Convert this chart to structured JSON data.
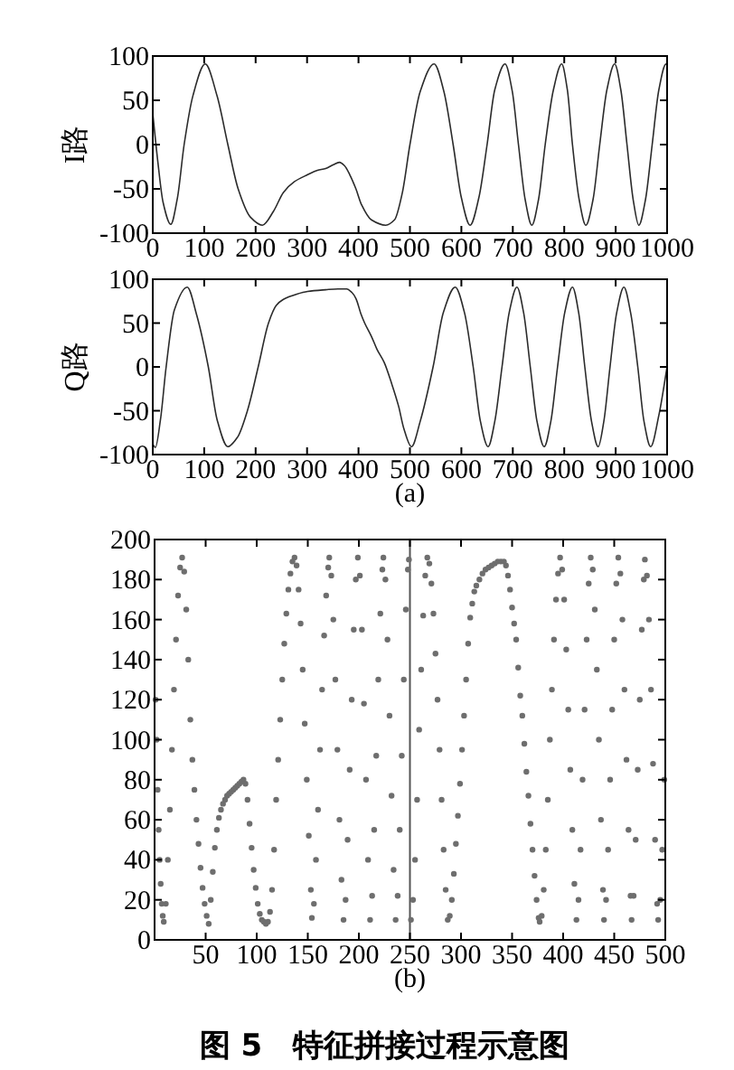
{
  "chart_data": [
    {
      "type": "line",
      "ylabel": "I路",
      "xlim": [
        0,
        1000
      ],
      "ylim": [
        -100,
        100
      ],
      "xticks": [
        0,
        100,
        200,
        300,
        400,
        500,
        600,
        700,
        800,
        900,
        1000
      ],
      "yticks": [
        -100,
        -50,
        0,
        50,
        100
      ],
      "series": [
        {
          "color": "#2b2b2b",
          "x": [
            0,
            10,
            20,
            35,
            48,
            61,
            78,
            102,
            125,
            146,
            166,
            190,
            213,
            235,
            254,
            275,
            301,
            320,
            336,
            350,
            363,
            373,
            383,
            395,
            406,
            425,
            453,
            470,
            485,
            500,
            520,
            547,
            566,
            584,
            600,
            617,
            634,
            650,
            665,
            685,
            699,
            711,
            724,
            737,
            750,
            763,
            779,
            795,
            806,
            816,
            829,
            842,
            856,
            869,
            883,
            898,
            910,
            922,
            934,
            945,
            958,
            971,
            984,
            998,
            1000
          ],
          "values": [
            35,
            -20,
            -65,
            -90,
            -60,
            0,
            55,
            91,
            55,
            0,
            -50,
            -82,
            -91,
            -75,
            -54,
            -42,
            -34,
            -29,
            -27,
            -23,
            -20,
            -24,
            -34,
            -50,
            -68,
            -85,
            -91,
            -85,
            -55,
            0,
            60,
            91,
            60,
            0,
            -60,
            -91,
            -60,
            0,
            62,
            91,
            60,
            0,
            -62,
            -91,
            -62,
            0,
            62,
            91,
            62,
            0,
            -62,
            -91,
            -62,
            0,
            62,
            91,
            62,
            0,
            -62,
            -91,
            -62,
            0,
            62,
            91,
            89
          ]
        }
      ]
    },
    {
      "type": "line",
      "ylabel": "Q路",
      "xlabel": "(a)",
      "xlim": [
        0,
        1000
      ],
      "ylim": [
        -100,
        100
      ],
      "xticks": [
        0,
        100,
        200,
        300,
        400,
        500,
        600,
        700,
        800,
        900,
        1000
      ],
      "yticks": [
        -100,
        -50,
        0,
        50,
        100
      ],
      "series": [
        {
          "color": "#2b2b2b",
          "x": [
            0,
            5,
            15,
            26,
            42,
            67,
            85,
            108,
            125,
            146,
            165,
            184,
            205,
            225,
            240,
            254,
            280,
            301,
            336,
            360,
            377,
            387,
            395,
            405,
            412,
            425,
            436,
            450,
            465,
            478,
            488,
            503,
            520,
            545,
            565,
            588,
            606,
            623,
            637,
            652,
            665,
            679,
            693,
            708,
            721,
            734,
            747,
            761,
            774,
            787,
            801,
            816,
            828,
            840,
            853,
            866,
            877,
            889,
            902,
            916,
            929,
            943,
            955,
            968,
            984,
            1000
          ],
          "values": [
            -88,
            -92,
            -60,
            0,
            65,
            91,
            60,
            0,
            -60,
            -91,
            -80,
            -50,
            0,
            50,
            70,
            77,
            83,
            86,
            88,
            89,
            89,
            85,
            78,
            60,
            50,
            35,
            20,
            5,
            -20,
            -45,
            -70,
            -91,
            -62,
            0,
            62,
            91,
            62,
            0,
            -62,
            -91,
            -62,
            0,
            62,
            91,
            62,
            0,
            -62,
            -91,
            -62,
            0,
            62,
            91,
            62,
            0,
            -62,
            -91,
            -62,
            0,
            62,
            91,
            62,
            0,
            -62,
            -91,
            -55,
            0
          ]
        }
      ]
    },
    {
      "type": "scatter",
      "xlabel": "(b)",
      "marker": "circle",
      "xlim": [
        0,
        500
      ],
      "ylim": [
        0,
        200
      ],
      "xticks": [
        50,
        100,
        150,
        200,
        250,
        300,
        350,
        400,
        450,
        500
      ],
      "yticks": [
        0,
        20,
        40,
        60,
        80,
        100,
        120,
        140,
        160,
        180,
        200
      ],
      "ref_lines": [
        {
          "axis": "x",
          "value": 250,
          "color": "#555555"
        }
      ],
      "annotations": [
        "图 5　特征拼接过程示意图"
      ],
      "series": [
        {
          "color": "#6e6e6e",
          "x": [
            1,
            2,
            3,
            4,
            5,
            6,
            7,
            8,
            9,
            11,
            13,
            15,
            17,
            19,
            21,
            23,
            25,
            27,
            29,
            31,
            33,
            35,
            37,
            39,
            41,
            43,
            45,
            47,
            49,
            51,
            53,
            55,
            57,
            59,
            61,
            63,
            65,
            67,
            69,
            71,
            73,
            75,
            77,
            79,
            81,
            83,
            85,
            87,
            89,
            91,
            93,
            95,
            97,
            99,
            101,
            103,
            105,
            107,
            109,
            111,
            113,
            115,
            117,
            119,
            121,
            123,
            125,
            127,
            129,
            131,
            133,
            135,
            137,
            139,
            141,
            143,
            145,
            147,
            149,
            151,
            153,
            154,
            156,
            158,
            160,
            162,
            164,
            166,
            168,
            170,
            171,
            173,
            175,
            177,
            179,
            181,
            183,
            185,
            187,
            189,
            191,
            193,
            195,
            197,
            199,
            201,
            203,
            205,
            207,
            209,
            211,
            213,
            215,
            217,
            219,
            221,
            223,
            224,
            226,
            228,
            230,
            232,
            234,
            236,
            238,
            240,
            242,
            244,
            246,
            248,
            249,
            251,
            253,
            255,
            257,
            259,
            261,
            263,
            265,
            267,
            269,
            271,
            273,
            275,
            277,
            279,
            281,
            283,
            285,
            287,
            289,
            291,
            293,
            295,
            297,
            299,
            301,
            303,
            305,
            307,
            309,
            311,
            313,
            315,
            318,
            321,
            324,
            327,
            330,
            333,
            336,
            339,
            342,
            344,
            346,
            348,
            350,
            352,
            354,
            356,
            358,
            360,
            362,
            364,
            366,
            368,
            370,
            372,
            374,
            376,
            377,
            379,
            381,
            383,
            385,
            387,
            389,
            391,
            393,
            395,
            397,
            399,
            401,
            403,
            405,
            407,
            409,
            411,
            413,
            415,
            417,
            419,
            421,
            423,
            425,
            427,
            429,
            431,
            433,
            435,
            437,
            439,
            440,
            442,
            444,
            446,
            448,
            450,
            452,
            454,
            456,
            458,
            460,
            462,
            464,
            466,
            467,
            469,
            471,
            473,
            475,
            477,
            479,
            480,
            482,
            484,
            486,
            488,
            490,
            492,
            493,
            495,
            497,
            499
          ],
          "values": [
            120,
            100,
            75,
            55,
            40,
            28,
            18,
            12,
            9,
            18,
            40,
            65,
            95,
            125,
            150,
            172,
            186,
            191,
            184,
            165,
            140,
            110,
            90,
            75,
            60,
            48,
            36,
            26,
            18,
            12,
            8,
            20,
            34,
            46,
            55,
            61,
            65,
            68,
            70,
            72,
            73,
            74,
            75,
            76,
            77,
            78,
            79,
            80,
            78,
            70,
            58,
            46,
            35,
            26,
            18,
            13,
            10,
            9,
            8,
            9,
            14,
            25,
            45,
            70,
            90,
            110,
            130,
            148,
            163,
            175,
            183,
            189,
            191,
            187,
            175,
            158,
            135,
            108,
            80,
            52,
            25,
            11,
            18,
            40,
            65,
            95,
            125,
            152,
            172,
            186,
            191,
            182,
            160,
            130,
            95,
            60,
            30,
            10,
            20,
            50,
            85,
            120,
            155,
            180,
            191,
            182,
            155,
            118,
            80,
            40,
            10,
            22,
            55,
            92,
            130,
            163,
            185,
            191,
            180,
            150,
            112,
            72,
            35,
            10,
            22,
            55,
            92,
            130,
            165,
            185,
            190,
            10,
            20,
            40,
            70,
            105,
            135,
            162,
            182,
            191,
            188,
            178,
            163,
            143,
            120,
            95,
            70,
            45,
            25,
            10,
            12,
            20,
            33,
            48,
            62,
            78,
            95,
            112,
            130,
            148,
            161,
            168,
            174,
            177,
            180,
            183,
            185,
            186,
            187,
            188,
            189,
            189,
            189,
            187,
            182,
            175,
            166,
            158,
            150,
            136,
            122,
            112,
            98,
            84,
            72,
            58,
            45,
            32,
            20,
            11,
            9,
            12,
            25,
            45,
            70,
            100,
            125,
            150,
            170,
            183,
            191,
            185,
            170,
            145,
            115,
            85,
            55,
            28,
            10,
            20,
            45,
            80,
            115,
            150,
            178,
            191,
            185,
            165,
            135,
            100,
            60,
            25,
            10,
            20,
            45,
            80,
            115,
            150,
            178,
            191,
            183,
            160,
            125,
            90,
            55,
            22,
            10,
            22,
            50,
            85,
            120,
            155,
            180,
            190,
            182,
            160,
            125,
            88,
            50,
            18,
            10,
            20,
            45,
            80
          ]
        }
      ]
    }
  ]
}
